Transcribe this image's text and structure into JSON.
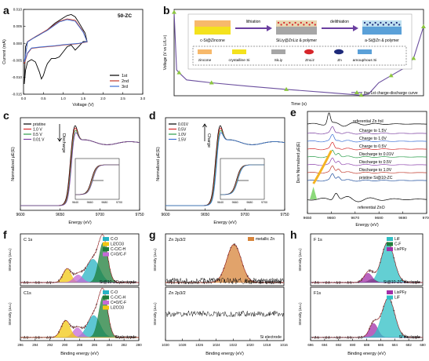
{
  "panels": {
    "a": "a",
    "b": "b",
    "c": "c",
    "d": "d",
    "e": "e",
    "f": "f",
    "g": "g",
    "h": "h"
  },
  "chart_data": [
    {
      "id": "a",
      "type": "line",
      "sample": "50-ZC",
      "xlabel": "Voltage (V)",
      "ylabel": "Current (mA)",
      "xlim": [
        0.0,
        3.0
      ],
      "ylim": [
        -0.015,
        0.01
      ],
      "xticks": [
        "0.0",
        "0.5",
        "1.0",
        "1.5",
        "2.0",
        "2.5",
        "3.0"
      ],
      "yticks": [
        "0.010",
        "0.005",
        "0.000",
        "-0.005",
        "-0.010",
        "-0.015"
      ],
      "series": [
        {
          "name": "1st",
          "color": "#000000",
          "x": [
            0.02,
            0.05,
            0.1,
            0.2,
            0.3,
            0.4,
            0.45,
            0.5,
            0.55,
            0.6,
            0.7,
            0.8,
            0.9,
            1.0,
            1.1,
            1.2,
            1.3,
            1.4,
            1.5,
            1.6,
            1.55,
            1.4,
            1.3,
            1.2,
            1.1,
            1.0,
            0.8,
            0.6,
            0.4,
            0.2,
            0.1,
            0.05,
            0.02
          ],
          "y": [
            -0.012,
            -0.008,
            -0.0055,
            -0.0048,
            -0.0055,
            -0.0085,
            -0.0105,
            -0.0095,
            -0.0075,
            -0.006,
            -0.0045,
            -0.0045,
            -0.004,
            -0.0025,
            -0.001,
            -0.0005,
            -0.002,
            -0.0008,
            0.0005,
            0.0005,
            0.003,
            0.006,
            0.0078,
            0.0085,
            0.0082,
            0.0075,
            0.006,
            0.004,
            0.0025,
            0.0012,
            0.0005,
            -0.001,
            -0.012
          ]
        },
        {
          "name": "2nd",
          "color": "#c0392b",
          "x": [
            0.02,
            0.1,
            0.2,
            0.4,
            0.6,
            0.8,
            1.0,
            1.2,
            1.4,
            1.5,
            1.6,
            1.5,
            1.3,
            1.1,
            0.9,
            0.6,
            0.3,
            0.1,
            0.02
          ],
          "y": [
            -0.006,
            -0.003,
            -0.0015,
            -0.0012,
            -0.001,
            -0.0008,
            -0.0005,
            -0.0003,
            -0.0001,
            0.0002,
            0.0004,
            0.0035,
            0.0068,
            0.0072,
            0.0065,
            0.004,
            0.002,
            0.0005,
            -0.006
          ]
        },
        {
          "name": "3rd",
          "color": "#3b6fd6",
          "x": [
            0.02,
            0.1,
            0.2,
            0.4,
            0.6,
            0.8,
            1.0,
            1.2,
            1.4,
            1.5,
            1.6,
            1.5,
            1.3,
            1.1,
            0.9,
            0.6,
            0.3,
            0.1,
            0.02
          ],
          "y": [
            -0.0055,
            -0.0028,
            -0.0014,
            -0.0011,
            -0.0009,
            -0.0007,
            -0.0004,
            -0.0002,
            0.0,
            0.0003,
            0.0005,
            0.0033,
            0.0065,
            0.007,
            0.0063,
            0.0038,
            0.0019,
            0.0004,
            -0.0055
          ]
        }
      ],
      "legend": "bottom-right"
    },
    {
      "id": "b",
      "type": "line",
      "xlabel": "Time (s)",
      "ylabel": "Voltage (V vs Li/Li+)",
      "series": [
        {
          "name": "the 1st charge-discharge curve",
          "color": "#6b4f9e",
          "marker_color": "#8cc63f",
          "x": [
            0.0,
            0.01,
            0.02,
            0.05,
            0.15,
            0.3,
            0.45,
            0.6,
            0.75,
            0.78,
            0.82,
            0.87,
            0.92,
            0.96,
            1.0
          ],
          "y": [
            2.9,
            0.9,
            0.8,
            0.55,
            0.45,
            0.33,
            0.22,
            0.12,
            0.02,
            0.06,
            0.45,
            0.7,
            0.95,
            1.3,
            2.4
          ]
        }
      ],
      "marker_x": [
        0.0,
        0.02,
        0.15,
        0.45,
        0.75,
        0.87,
        0.96,
        1.0
      ],
      "legend": "bottom-right",
      "inset": {
        "steps": [
          {
            "label": "c-Si@Zincone"
          },
          {
            "arrow": "lithiation"
          },
          {
            "label": "SiLiy@ZnLiz & polymer"
          },
          {
            "arrow": "delithiation"
          },
          {
            "label": "a-Si@Zn & polymer"
          }
        ],
        "key": [
          {
            "label": "zincone",
            "color": "#f7b96b"
          },
          {
            "label": "crystalline Si",
            "color": "#f4e21d"
          },
          {
            "label": "SiLiy",
            "color": "#a6a6a6"
          },
          {
            "label": "ZnLiz",
            "color": "#d7262b"
          },
          {
            "label": "Zn",
            "color": "#1e2a7a"
          },
          {
            "label": "amouphous Si",
            "color": "#5aa0d8"
          }
        ]
      }
    },
    {
      "id": "c",
      "type": "line",
      "xlabel": "Energy (eV)",
      "ylabel": "Normalized μE(E)",
      "xlim": [
        9600,
        9750
      ],
      "xticks": [
        "9600",
        "9650",
        "9700",
        "9750"
      ],
      "annotation": "Discharge",
      "series": [
        {
          "name": "pristine",
          "color": "#000000"
        },
        {
          "name": "1.0 V",
          "color": "#d62728"
        },
        {
          "name": "0.5 V",
          "color": "#2a9d4a"
        },
        {
          "name": "0.01 V",
          "color": "#7b3fa0"
        }
      ],
      "inset_xticks": [
        "9640",
        "9660",
        "9680",
        "9700"
      ],
      "legend": "top-left"
    },
    {
      "id": "d",
      "type": "line",
      "xlabel": "Energy (eV)",
      "ylabel": "Normalized μE(E)",
      "xlim": [
        9600,
        9750
      ],
      "xticks": [
        "9600",
        "9650",
        "9700",
        "9750"
      ],
      "annotation": "Charge",
      "series": [
        {
          "name": "0.01V",
          "color": "#000000"
        },
        {
          "name": "0.5V",
          "color": "#d62728"
        },
        {
          "name": "1.0V",
          "color": "#2a9d4a"
        },
        {
          "name": "1.5V",
          "color": "#3b6fd6"
        }
      ],
      "inset_xticks": [
        "9640",
        "9660",
        "9680",
        "9700"
      ],
      "legend": "top-left"
    },
    {
      "id": "e",
      "type": "line",
      "xlabel": "Energy (eV)",
      "ylabel": "Deriv Normalized μE(E)",
      "xlim": [
        9650,
        9700
      ],
      "xticks": [
        "9650",
        "9660",
        "9670",
        "9680",
        "9690",
        "9700"
      ],
      "series": [
        {
          "name": "referential Zn foil",
          "color": "#000000"
        },
        {
          "name": "Charge to 1.5V",
          "color": "#7b3fa0"
        },
        {
          "name": "Charge to 1.0V",
          "color": "#3b6fd6"
        },
        {
          "name": "Charge to 0.5V",
          "color": "#d62728"
        },
        {
          "name": "Discharge to 0.01V",
          "color": "#2a9d4a"
        },
        {
          "name": "Discharge to 0.5V",
          "color": "#8e44ad"
        },
        {
          "name": "Discharge to 1.0V",
          "color": "#c0392b"
        },
        {
          "name": "pristine Si@10-ZC",
          "color": "#1f4e9c"
        },
        {
          "name": "referential ZnO",
          "color": "#000000"
        }
      ]
    },
    {
      "id": "f",
      "type": "area",
      "xlabel": "Binding energy (eV)",
      "ylabel": "Intensity (a.u.)",
      "xlim": [
        280,
        296
      ],
      "xticks": [
        "280",
        "282",
        "284",
        "286",
        "288",
        "290",
        "292",
        "294",
        "296"
      ],
      "top": {
        "title": "C 1s",
        "sample": "Si@10-ZC electrode",
        "components": [
          {
            "name": "C-O",
            "color": "#27b3c4",
            "center": 286.2,
            "height": 0.55,
            "width": 0.9
          },
          {
            "name": "Li2CO3",
            "color": "#f2c811",
            "center": 289.7,
            "height": 0.32,
            "width": 0.55
          },
          {
            "name": "C-C/C-H",
            "color": "#1e7d3a",
            "center": 284.8,
            "height": 0.95,
            "width": 0.6
          },
          {
            "name": "C=O/C-F",
            "color": "#c46ad6",
            "center": 288.2,
            "height": 0.18,
            "width": 0.6
          }
        ]
      },
      "bottom": {
        "title": "C1s",
        "sample": "Si electrode",
        "components": [
          {
            "name": "C-O",
            "color": "#27b3c4",
            "center": 286.1,
            "height": 0.5,
            "width": 0.85
          },
          {
            "name": "C-C/C-H",
            "color": "#1e7d3a",
            "center": 284.8,
            "height": 0.95,
            "width": 0.6
          },
          {
            "name": "C=O/C-F",
            "color": "#c46ad6",
            "center": 288.3,
            "height": 0.22,
            "width": 0.6
          },
          {
            "name": "Li2CO3",
            "color": "#f2c811",
            "center": 289.9,
            "height": 0.38,
            "width": 0.6
          }
        ]
      }
    },
    {
      "id": "g",
      "type": "area",
      "xlabel": "Binding energy (eV)",
      "ylabel": "Intensity (a.u.)",
      "xlim": [
        1016,
        1030
      ],
      "xticks": [
        "1016",
        "1018",
        "1020",
        "1022",
        "1024",
        "1026",
        "1028",
        "1030"
      ],
      "top": {
        "title": "Zn 2p3/2",
        "sample": "Si@10-ZC electrode",
        "components": [
          {
            "name": "metallic Zn",
            "color": "#d7843a",
            "center": 1021.9,
            "height": 0.9,
            "width": 0.85
          }
        ]
      },
      "bottom": {
        "title": "Zn 2p3/2",
        "sample": "Si electrode",
        "components": []
      }
    },
    {
      "id": "h",
      "type": "area",
      "xlabel": "Binding energy (eV)",
      "ylabel": "Intensity (a.u.)",
      "xlim": [
        680,
        696
      ],
      "xticks": [
        "680",
        "682",
        "684",
        "686",
        "688",
        "690",
        "692",
        "694",
        "696"
      ],
      "top": {
        "title": "F 1s",
        "sample": "Si@10-ZC electrode",
        "components": [
          {
            "name": "LiF",
            "color": "#2fbfc4",
            "center": 685.0,
            "height": 0.95,
            "width": 0.9
          },
          {
            "name": "C-F",
            "color": "#1e7d3a",
            "center": 687.2,
            "height": 0.08,
            "width": 0.5
          },
          {
            "name": "LixPFy",
            "color": "#a22fa8",
            "center": 687.8,
            "height": 0.22,
            "width": 0.6
          }
        ]
      },
      "bottom": {
        "title": "F1s",
        "sample": "Si electrode",
        "components": [
          {
            "name": "LixPFy",
            "color": "#a22fa8",
            "center": 687.0,
            "height": 0.32,
            "width": 0.6
          },
          {
            "name": "LiF",
            "color": "#2fbfc4",
            "center": 684.9,
            "height": 0.9,
            "width": 0.9
          }
        ]
      }
    }
  ]
}
